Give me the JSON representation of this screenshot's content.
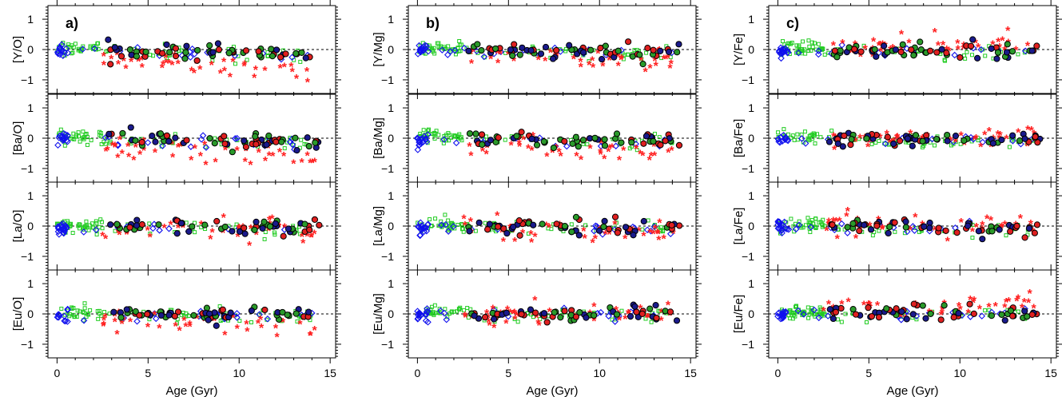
{
  "figure": {
    "xlabel": "Age (Gyr)",
    "colors": {
      "blue_diamond": "#1010ee",
      "green_square": "#22cc22",
      "red_star": "#ff2020",
      "circle_navy": "#1a1a8c",
      "circle_red": "#e02020",
      "circle_green": "#2a9a2a",
      "zero_line": "#000000"
    },
    "panels": [
      {
        "column_label": "a)",
        "rows": [
          {
            "ylabel": "[Y/O]",
            "trend": -0.15,
            "star_offset": -0.55
          },
          {
            "ylabel": "[Ba/O]",
            "trend": -0.12,
            "star_offset": -0.55
          },
          {
            "ylabel": "[La/O]",
            "trend": -0.05,
            "star_offset": -0.15
          },
          {
            "ylabel": "[Eu/O]",
            "trend": -0.05,
            "star_offset": -0.3
          }
        ]
      },
      {
        "column_label": "b)",
        "rows": [
          {
            "ylabel": "[Y/Mg]",
            "trend": -0.1,
            "star_offset": -0.3
          },
          {
            "ylabel": "[Ba/Mg]",
            "trend": -0.1,
            "star_offset": -0.4
          },
          {
            "ylabel": "[La/Mg]",
            "trend": -0.05,
            "star_offset": -0.1
          },
          {
            "ylabel": "[Eu/Mg]",
            "trend": 0.0,
            "star_offset": 0.0
          }
        ]
      },
      {
        "column_label": "c)",
        "rows": [
          {
            "ylabel": "[Y/Fe]",
            "trend": -0.05,
            "star_offset": 0.15
          },
          {
            "ylabel": "[Ba/Fe]",
            "trend": -0.05,
            "star_offset": 0.05
          },
          {
            "ylabel": "[La/Fe]",
            "trend": -0.05,
            "star_offset": 0.05
          },
          {
            "ylabel": "[Eu/Fe]",
            "trend": 0.05,
            "star_offset": 0.3
          }
        ]
      }
    ]
  },
  "chart_data": {
    "type": "scatter",
    "x_axis": {
      "label": "Age (Gyr)",
      "range": [
        -0.5,
        15.3
      ],
      "ticks": [
        0,
        5,
        10,
        15
      ]
    },
    "y_axis": {
      "range": [
        -1.45,
        1.45
      ],
      "ticks": [
        -1,
        0,
        1
      ]
    },
    "reference_line": {
      "y": 0,
      "style": "dashed"
    },
    "grid": false,
    "legend": "none"
  }
}
